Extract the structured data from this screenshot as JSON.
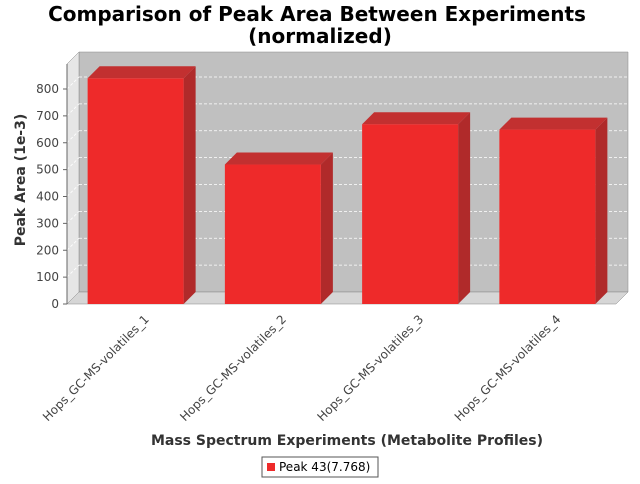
{
  "chart_data": {
    "type": "bar",
    "title_lines": [
      "Comparison of Peak Area Between Experiments",
      "(normalized)"
    ],
    "xlabel": "Mass Spectrum Experiments (Metabolite Profiles)",
    "ylabel": "Peak Area (1e-3)",
    "categories": [
      "Hops_GC-MS-volatiles_1",
      "Hops_GC-MS-volatiles_2",
      "Hops_GC-MS-volatiles_3",
      "Hops_GC-MS-volatiles_4"
    ],
    "series": [
      {
        "name": "Peak 43(7.768)",
        "values": [
          840,
          519,
          669,
          649
        ]
      }
    ],
    "ylim": [
      0,
      800
    ],
    "yticks": [
      "0",
      "100",
      "200",
      "300",
      "400",
      "500",
      "600",
      "700",
      "800"
    ],
    "grid": true,
    "legend": "bottom-center",
    "colors": {
      "bar": "#ee2a2a",
      "bar_top": "#c23030",
      "bar_side": "#b02a2a",
      "plot_background": "#c0c0c0",
      "floor": "#d6d6d6",
      "wall": "#e6e6e6"
    }
  }
}
